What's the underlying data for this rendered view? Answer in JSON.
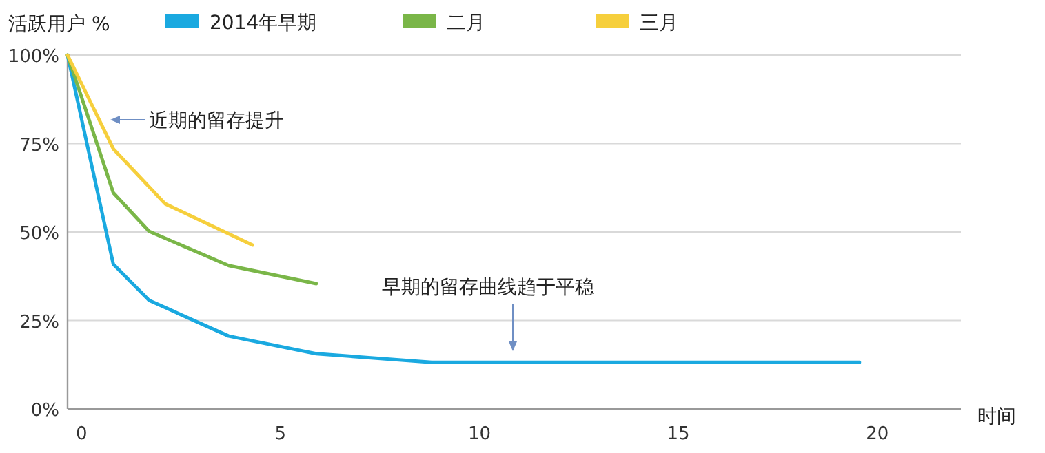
{
  "chart_data": {
    "type": "line",
    "xlabel": "时间",
    "ylabel": "活跃用户 %",
    "xlim": [
      -0.35,
      22.1
    ],
    "ylim": [
      0,
      100
    ],
    "xticks": [
      0,
      5,
      10,
      15,
      20
    ],
    "yticks": [
      {
        "value": 0,
        "label": "0%"
      },
      {
        "value": 25,
        "label": "25%"
      },
      {
        "value": 50,
        "label": "50%"
      },
      {
        "value": 75,
        "label": "75%"
      },
      {
        "value": 100,
        "label": "100%"
      }
    ],
    "grid": "y",
    "legend": "top",
    "marker": "none",
    "line_style": "solid",
    "series": [
      {
        "name": "2014年早期",
        "color": "#1aa9e0",
        "x": [
          -0.35,
          0.8,
          1.7,
          3.7,
          5.9,
          8.8,
          19.55
        ],
        "values": [
          100,
          40.9,
          30.7,
          20.6,
          15.6,
          13.2,
          13.2
        ]
      },
      {
        "name": "二月",
        "color": "#7ab648",
        "x": [
          -0.35,
          0.8,
          1.7,
          3.7,
          5.9
        ],
        "values": [
          100,
          61.1,
          50.2,
          40.5,
          35.4
        ]
      },
      {
        "name": "三月",
        "color": "#f6cf3c",
        "x": [
          -0.35,
          0.8,
          2.1,
          4.3
        ],
        "values": [
          100,
          73.5,
          58,
          46.3
        ]
      }
    ],
    "annotations": [
      "近期的留存提升",
      "早期的留存曲线趋于平稳"
    ]
  }
}
